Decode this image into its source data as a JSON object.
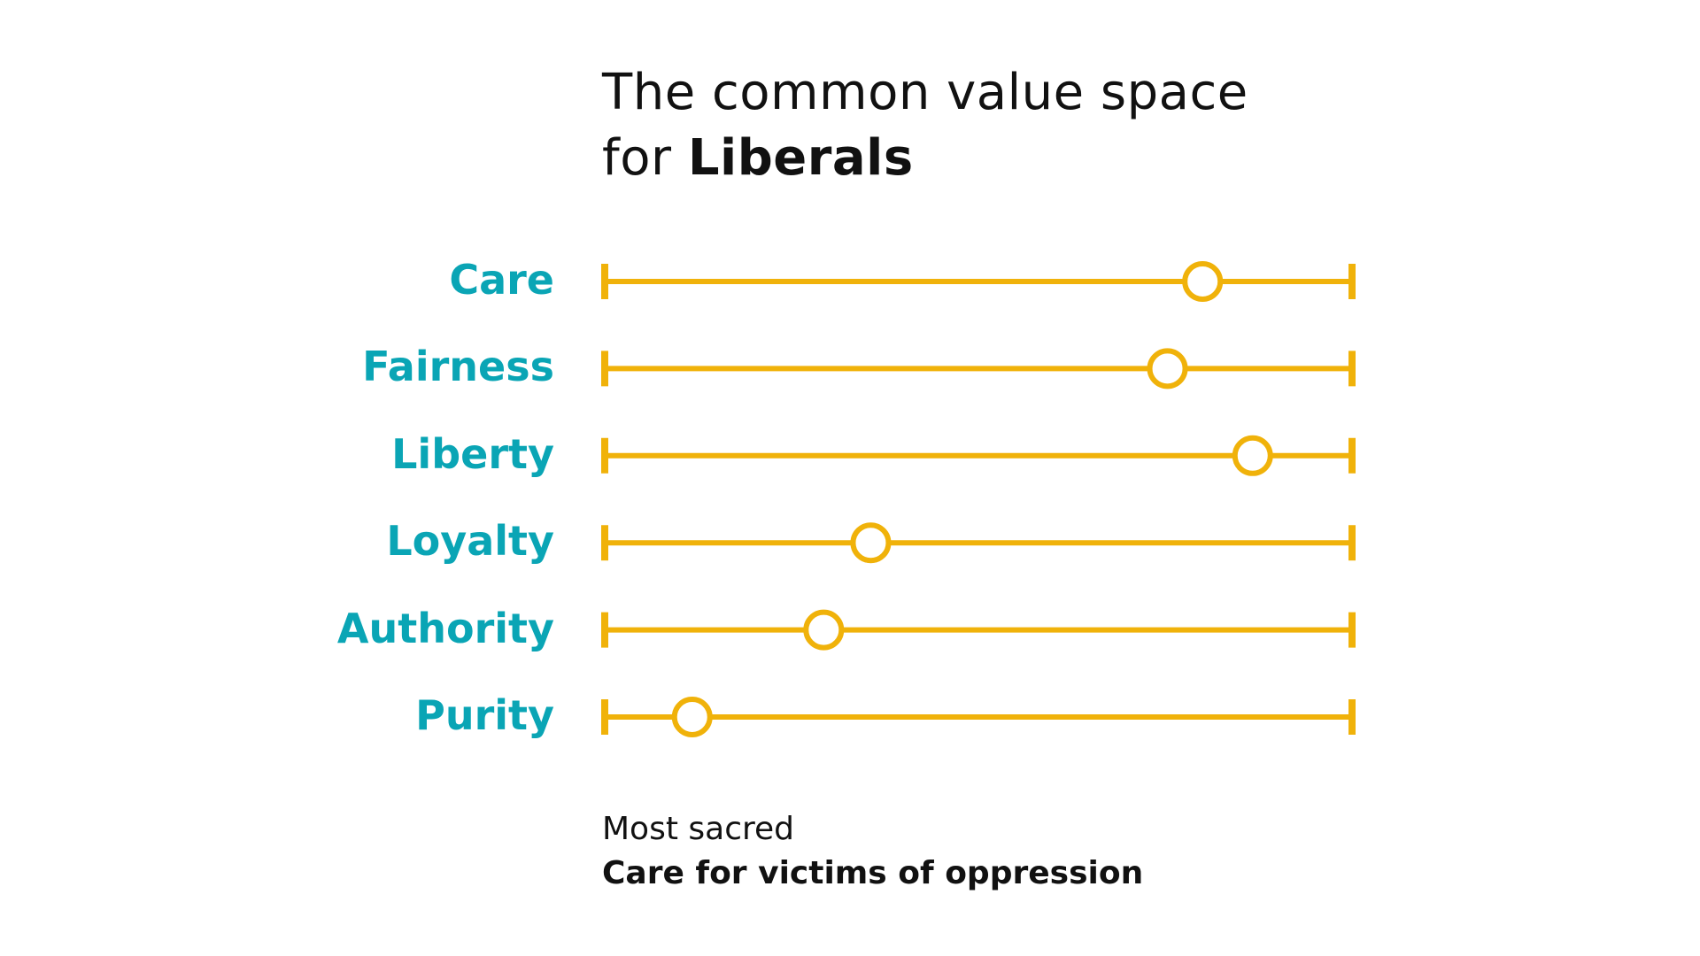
{
  "title": {
    "line1": "The common value space",
    "line2_prefix": "for ",
    "line2_bold": "Liberals"
  },
  "footer": {
    "label": "Most sacred",
    "value": "Care for victims of oppression"
  },
  "colors": {
    "track": "#f0b20a",
    "label": "#0aa5b5",
    "marker_fill": "#ffffff",
    "text": "#111111"
  },
  "chart_data": {
    "type": "dot",
    "range": [
      0,
      1
    ],
    "categories": [
      "Care",
      "Fairness",
      "Liberty",
      "Loyalty",
      "Authority",
      "Purity"
    ],
    "values": [
      0.8,
      0.753,
      0.867,
      0.356,
      0.293,
      0.117
    ]
  }
}
